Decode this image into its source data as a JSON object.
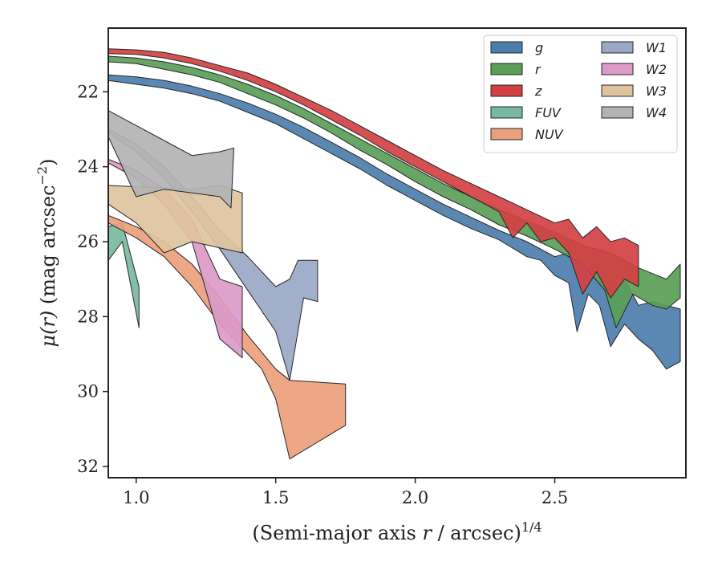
{
  "chart_data": {
    "type": "area",
    "xlabel": "(Semi-major axis r / arcsec)^1/4",
    "xlabel_parts": {
      "pre": "(Semi-major axis ",
      "var": "r",
      "mid": " / arcsec)",
      "sup": "1/4"
    },
    "ylabel": "μ(r) (mag arcsec^−2)",
    "ylabel_parts": {
      "var": "μ(r)",
      "mid": " (mag arcsec",
      "sup": "−2",
      "post": ")"
    },
    "xlim": [
      0.9,
      2.97
    ],
    "ylim": [
      32.3,
      20.3
    ],
    "y_inverted": true,
    "xticks": [
      1.0,
      1.5,
      2.0,
      2.5
    ],
    "xtick_labels": [
      "1.0",
      "1.5",
      "2.0",
      "2.5"
    ],
    "yticks": [
      22,
      24,
      26,
      28,
      30,
      32
    ],
    "ytick_labels": [
      "22",
      "24",
      "26",
      "28",
      "30",
      "32"
    ],
    "grid": false,
    "legend": {
      "placement": "top-right",
      "columns": 2
    },
    "series": [
      {
        "name": "g",
        "color": "#4c7eac",
        "upper": [
          [
            0.9,
            21.55
          ],
          [
            1.0,
            21.6
          ],
          [
            1.1,
            21.7
          ],
          [
            1.2,
            21.85
          ],
          [
            1.3,
            22.05
          ],
          [
            1.4,
            22.3
          ],
          [
            1.5,
            22.6
          ],
          [
            1.6,
            22.95
          ],
          [
            1.7,
            23.35
          ],
          [
            1.8,
            23.75
          ],
          [
            1.9,
            24.2
          ],
          [
            2.0,
            24.6
          ],
          [
            2.1,
            25.0
          ],
          [
            2.2,
            25.35
          ],
          [
            2.3,
            25.7
          ],
          [
            2.4,
            26.0
          ],
          [
            2.45,
            26.2
          ],
          [
            2.5,
            26.4
          ],
          [
            2.55,
            26.3
          ],
          [
            2.6,
            26.7
          ],
          [
            2.65,
            26.6
          ],
          [
            2.7,
            27.2
          ],
          [
            2.75,
            27.0
          ],
          [
            2.8,
            27.7
          ],
          [
            2.85,
            27.6
          ],
          [
            2.9,
            27.7
          ],
          [
            2.95,
            27.8
          ]
        ],
        "lower": [
          [
            0.9,
            21.7
          ],
          [
            1.0,
            21.8
          ],
          [
            1.1,
            21.9
          ],
          [
            1.2,
            22.05
          ],
          [
            1.3,
            22.25
          ],
          [
            1.4,
            22.55
          ],
          [
            1.5,
            22.85
          ],
          [
            1.6,
            23.25
          ],
          [
            1.7,
            23.65
          ],
          [
            1.8,
            24.05
          ],
          [
            1.9,
            24.5
          ],
          [
            2.0,
            24.9
          ],
          [
            2.1,
            25.3
          ],
          [
            2.2,
            25.65
          ],
          [
            2.3,
            25.95
          ],
          [
            2.4,
            26.4
          ],
          [
            2.45,
            26.5
          ],
          [
            2.5,
            26.9
          ],
          [
            2.55,
            27.1
          ],
          [
            2.58,
            28.4
          ],
          [
            2.62,
            27.4
          ],
          [
            2.66,
            27.7
          ],
          [
            2.7,
            28.8
          ],
          [
            2.75,
            28.2
          ],
          [
            2.8,
            28.6
          ],
          [
            2.85,
            28.9
          ],
          [
            2.9,
            29.4
          ],
          [
            2.95,
            29.2
          ]
        ]
      },
      {
        "name": "r",
        "color": "#5a9e57",
        "upper": [
          [
            0.9,
            21.05
          ],
          [
            1.0,
            21.1
          ],
          [
            1.1,
            21.2
          ],
          [
            1.2,
            21.35
          ],
          [
            1.3,
            21.55
          ],
          [
            1.4,
            21.8
          ],
          [
            1.5,
            22.1
          ],
          [
            1.6,
            22.45
          ],
          [
            1.7,
            22.85
          ],
          [
            1.8,
            23.25
          ],
          [
            1.9,
            23.65
          ],
          [
            2.0,
            24.05
          ],
          [
            2.1,
            24.45
          ],
          [
            2.2,
            24.8
          ],
          [
            2.3,
            25.15
          ],
          [
            2.4,
            25.45
          ],
          [
            2.5,
            25.75
          ],
          [
            2.6,
            26.1
          ],
          [
            2.7,
            26.3
          ],
          [
            2.8,
            26.7
          ],
          [
            2.9,
            27.0
          ],
          [
            2.95,
            26.6
          ]
        ],
        "lower": [
          [
            0.9,
            21.2
          ],
          [
            1.0,
            21.25
          ],
          [
            1.1,
            21.4
          ],
          [
            1.2,
            21.55
          ],
          [
            1.3,
            21.75
          ],
          [
            1.4,
            22.05
          ],
          [
            1.5,
            22.35
          ],
          [
            1.6,
            22.7
          ],
          [
            1.7,
            23.1
          ],
          [
            1.8,
            23.55
          ],
          [
            1.9,
            23.95
          ],
          [
            2.0,
            24.4
          ],
          [
            2.1,
            24.8
          ],
          [
            2.2,
            25.15
          ],
          [
            2.3,
            25.55
          ],
          [
            2.4,
            25.85
          ],
          [
            2.5,
            26.2
          ],
          [
            2.6,
            26.6
          ],
          [
            2.68,
            27.3
          ],
          [
            2.72,
            28.3
          ],
          [
            2.78,
            27.4
          ],
          [
            2.85,
            27.7
          ],
          [
            2.9,
            27.8
          ],
          [
            2.95,
            27.5
          ]
        ]
      },
      {
        "name": "z",
        "color": "#d24043",
        "upper": [
          [
            0.9,
            20.85
          ],
          [
            1.0,
            20.88
          ],
          [
            1.1,
            20.95
          ],
          [
            1.2,
            21.1
          ],
          [
            1.3,
            21.3
          ],
          [
            1.4,
            21.5
          ],
          [
            1.5,
            21.8
          ],
          [
            1.6,
            22.15
          ],
          [
            1.7,
            22.5
          ],
          [
            1.8,
            22.9
          ],
          [
            1.9,
            23.3
          ],
          [
            2.0,
            23.7
          ],
          [
            2.1,
            24.1
          ],
          [
            2.2,
            24.45
          ],
          [
            2.3,
            24.8
          ],
          [
            2.4,
            25.15
          ],
          [
            2.5,
            25.5
          ],
          [
            2.55,
            25.4
          ],
          [
            2.6,
            25.9
          ],
          [
            2.65,
            25.6
          ],
          [
            2.7,
            26.0
          ],
          [
            2.75,
            25.9
          ],
          [
            2.8,
            26.1
          ]
        ],
        "lower": [
          [
            0.9,
            20.98
          ],
          [
            1.0,
            21.0
          ],
          [
            1.1,
            21.1
          ],
          [
            1.2,
            21.25
          ],
          [
            1.3,
            21.45
          ],
          [
            1.4,
            21.7
          ],
          [
            1.5,
            22.0
          ],
          [
            1.6,
            22.35
          ],
          [
            1.7,
            22.75
          ],
          [
            1.8,
            23.15
          ],
          [
            1.9,
            23.6
          ],
          [
            2.0,
            24.0
          ],
          [
            2.1,
            24.4
          ],
          [
            2.2,
            24.8
          ],
          [
            2.3,
            25.2
          ],
          [
            2.35,
            25.9
          ],
          [
            2.4,
            25.5
          ],
          [
            2.45,
            26.0
          ],
          [
            2.5,
            25.9
          ],
          [
            2.55,
            26.3
          ],
          [
            2.6,
            27.4
          ],
          [
            2.65,
            26.8
          ],
          [
            2.7,
            27.5
          ],
          [
            2.75,
            27.0
          ],
          [
            2.8,
            27.2
          ]
        ]
      },
      {
        "name": "FUV",
        "color": "#78b9a0",
        "upper": [
          [
            0.9,
            25.6
          ],
          [
            0.95,
            25.5
          ],
          [
            1.01,
            27.2
          ]
        ],
        "lower": [
          [
            0.9,
            26.5
          ],
          [
            0.95,
            26.0
          ],
          [
            1.01,
            28.3
          ]
        ]
      },
      {
        "name": "NUV",
        "color": "#eb9f7c",
        "upper": [
          [
            0.9,
            25.3
          ],
          [
            1.0,
            25.6
          ],
          [
            1.1,
            26.0
          ],
          [
            1.2,
            26.6
          ],
          [
            1.3,
            27.5
          ],
          [
            1.4,
            28.5
          ],
          [
            1.5,
            29.4
          ],
          [
            1.55,
            29.7
          ],
          [
            1.75,
            29.8
          ]
        ],
        "lower": [
          [
            0.9,
            25.5
          ],
          [
            1.0,
            25.9
          ],
          [
            1.1,
            26.4
          ],
          [
            1.2,
            27.2
          ],
          [
            1.3,
            28.2
          ],
          [
            1.4,
            29.0
          ],
          [
            1.45,
            29.4
          ],
          [
            1.5,
            30.2
          ],
          [
            1.55,
            31.8
          ],
          [
            1.75,
            30.9
          ]
        ]
      },
      {
        "name": "W1",
        "color": "#9aa8c6",
        "upper": [
          [
            0.9,
            23.0
          ],
          [
            1.0,
            23.4
          ],
          [
            1.1,
            24.0
          ],
          [
            1.2,
            24.8
          ],
          [
            1.3,
            25.7
          ],
          [
            1.4,
            26.4
          ],
          [
            1.5,
            27.2
          ],
          [
            1.55,
            27.0
          ],
          [
            1.58,
            26.5
          ],
          [
            1.65,
            26.5
          ]
        ],
        "lower": [
          [
            0.9,
            23.1
          ],
          [
            1.0,
            23.6
          ],
          [
            1.1,
            24.3
          ],
          [
            1.2,
            25.2
          ],
          [
            1.3,
            26.2
          ],
          [
            1.4,
            27.3
          ],
          [
            1.5,
            28.4
          ],
          [
            1.55,
            29.7
          ],
          [
            1.6,
            27.5
          ],
          [
            1.65,
            27.6
          ]
        ]
      },
      {
        "name": "W2",
        "color": "#dc9ac8",
        "upper": [
          [
            0.9,
            23.8
          ],
          [
            1.0,
            24.1
          ],
          [
            1.1,
            24.6
          ],
          [
            1.2,
            25.4
          ],
          [
            1.3,
            27.0
          ],
          [
            1.38,
            27.2
          ]
        ],
        "lower": [
          [
            0.9,
            23.9
          ],
          [
            1.0,
            24.3
          ],
          [
            1.1,
            25.0
          ],
          [
            1.2,
            26.0
          ],
          [
            1.3,
            28.6
          ],
          [
            1.38,
            29.1
          ]
        ]
      },
      {
        "name": "W3",
        "color": "#dec39e",
        "upper": [
          [
            0.9,
            24.5
          ],
          [
            1.2,
            24.6
          ],
          [
            1.3,
            24.5
          ],
          [
            1.38,
            24.7
          ]
        ],
        "lower": [
          [
            0.9,
            25.0
          ],
          [
            1.0,
            25.5
          ],
          [
            1.1,
            26.3
          ],
          [
            1.2,
            26.0
          ],
          [
            1.38,
            26.3
          ]
        ]
      },
      {
        "name": "W4",
        "color": "#b3b3b3",
        "upper": [
          [
            0.9,
            22.5
          ],
          [
            1.0,
            22.9
          ],
          [
            1.1,
            23.3
          ],
          [
            1.2,
            23.7
          ],
          [
            1.3,
            23.6
          ],
          [
            1.35,
            23.5
          ]
        ],
        "lower": [
          [
            0.9,
            23.2
          ],
          [
            1.0,
            24.8
          ],
          [
            1.1,
            24.6
          ],
          [
            1.2,
            24.7
          ],
          [
            1.3,
            24.8
          ],
          [
            1.34,
            25.1
          ]
        ]
      }
    ]
  }
}
